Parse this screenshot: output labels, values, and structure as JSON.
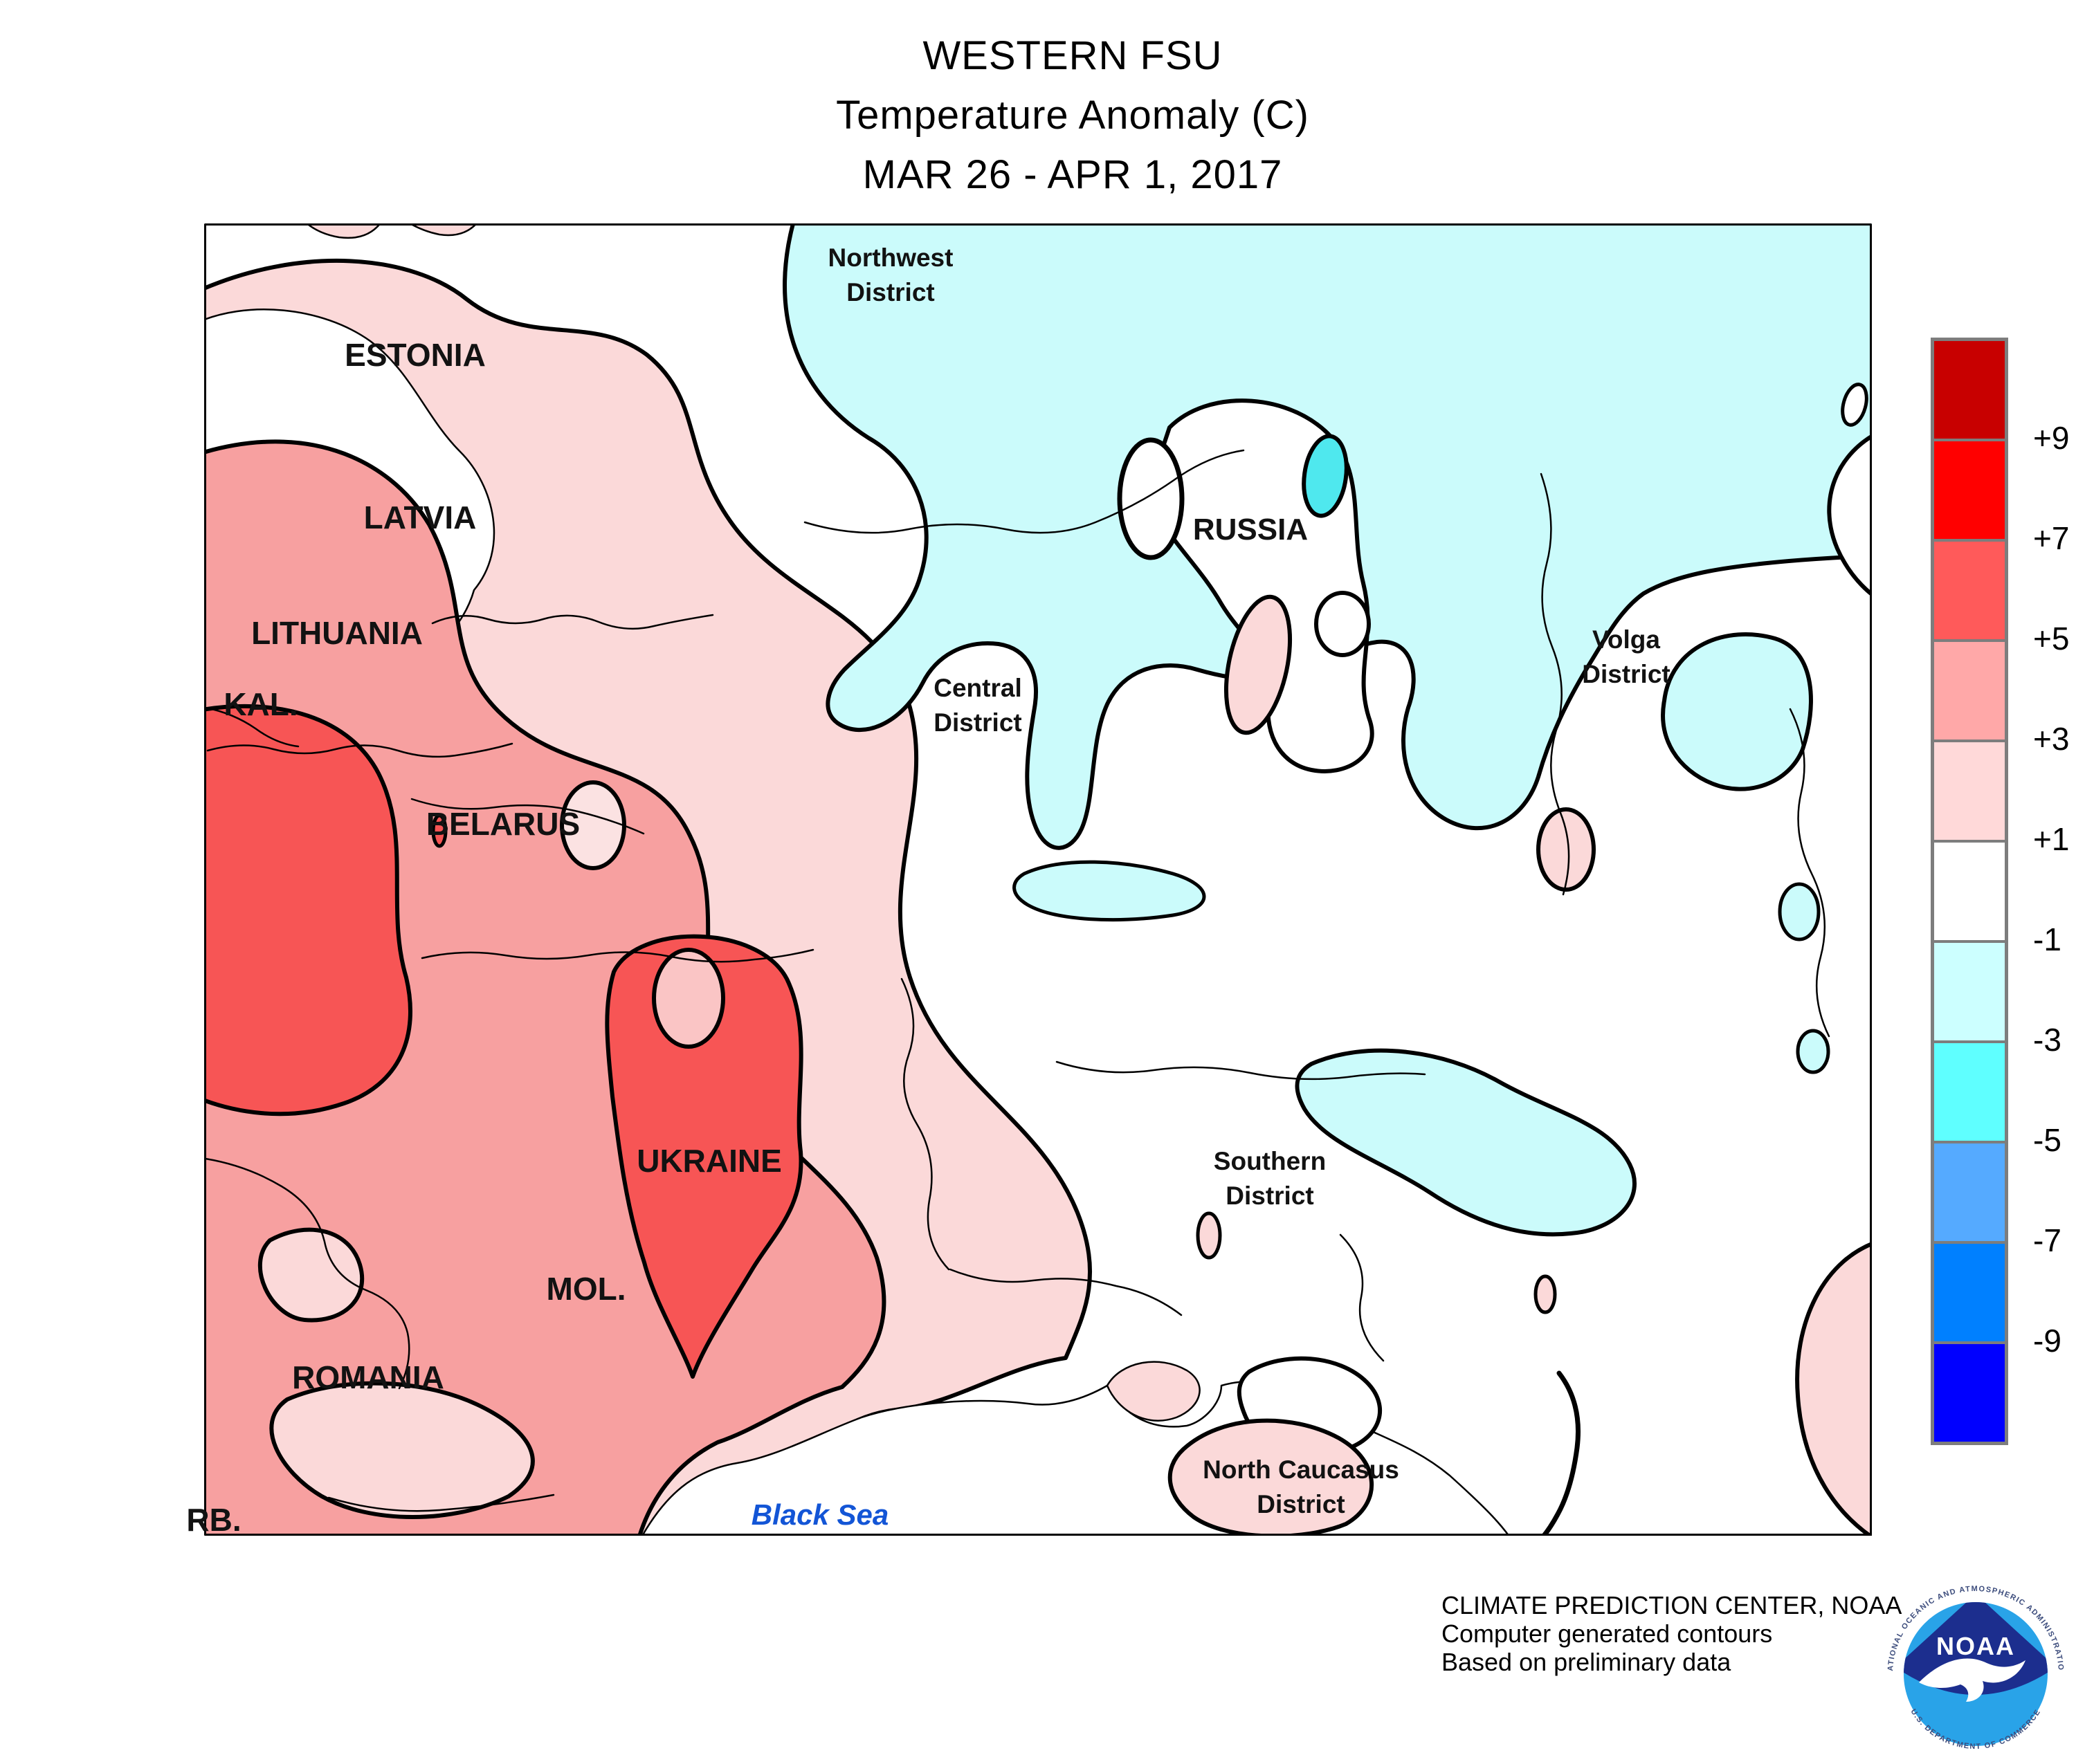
{
  "title": {
    "line1": "WESTERN FSU",
    "line2": "Temperature Anomaly (C)",
    "line3": "MAR 26 - APR 1, 2017"
  },
  "map": {
    "country_labels": [
      {
        "id": "estonia",
        "text": "ESTONIA"
      },
      {
        "id": "latvia",
        "text": "LATVIA"
      },
      {
        "id": "lithuania",
        "text": "LITHUANIA"
      },
      {
        "id": "kaliningrad",
        "text": "KAL."
      },
      {
        "id": "belarus",
        "text": "BELARUS"
      },
      {
        "id": "ukraine",
        "text": "UKRAINE"
      },
      {
        "id": "moldova",
        "text": "MOL."
      },
      {
        "id": "romania",
        "text": "ROMANIA"
      },
      {
        "id": "serbia",
        "text": "RB."
      },
      {
        "id": "russia",
        "text": "RUSSIA"
      }
    ],
    "district_labels": [
      {
        "id": "northwest",
        "line1": "Northwest",
        "line2": "District"
      },
      {
        "id": "central",
        "line1": "Central",
        "line2": "District"
      },
      {
        "id": "volga",
        "line1": "Volga",
        "line2": "District"
      },
      {
        "id": "southern",
        "line1": "Southern",
        "line2": "District"
      },
      {
        "id": "north-caucasus",
        "line1": "North Caucasus",
        "line2": "District"
      }
    ],
    "sea_label": "Black Sea"
  },
  "legend": {
    "values": [
      "+9",
      "+7",
      "+5",
      "+3",
      "+1",
      "-1",
      "-3",
      "-5",
      "-7",
      "-9"
    ],
    "colors": [
      "#C80000",
      "#FF0000",
      "#FF5A5A",
      "#FFA8A8",
      "#FFD9D9",
      "#FFFFFF",
      "#CCFFFF",
      "#5FFFFF",
      "#55AAFF",
      "#0080FF",
      "#0000FF"
    ],
    "border_color": "#7d7d7d"
  },
  "credits": {
    "line1": "CLIMATE PREDICTION CENTER, NOAA",
    "line2": "Computer generated contours",
    "line3": "Based on preliminary data"
  },
  "logo": {
    "name": "NOAA",
    "top_arc": "NATIONAL OCEANIC AND ATMOSPHERIC ADMINISTRATION",
    "bottom_arc": "U.S. DEPARTMENT OF COMMERCE"
  }
}
